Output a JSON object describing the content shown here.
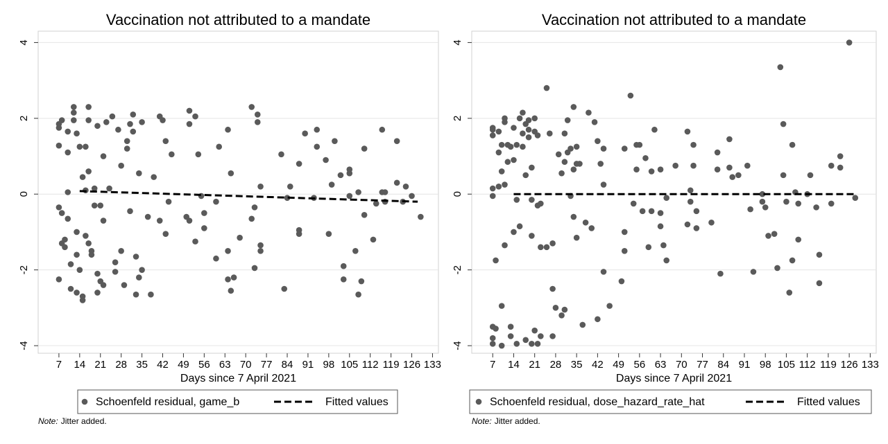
{
  "chart_data": [
    {
      "type": "scatter",
      "title": "Vaccination not attributed to a mandate",
      "x_label": "Days since 7 April 2021",
      "xlim": [
        0,
        135
      ],
      "ylim": [
        -4.2,
        4.3
      ],
      "xticks": [
        7,
        14,
        21,
        28,
        35,
        42,
        49,
        56,
        63,
        70,
        77,
        84,
        91,
        98,
        105,
        112,
        119,
        126,
        133
      ],
      "yticks": [
        -4,
        -2,
        0,
        2,
        4
      ],
      "grid": true,
      "note_label": "Note:",
      "note": "Jitter added.",
      "series": [
        {
          "name": "Schoenfeld residual, game_b",
          "color": "#5a5a5a",
          "kind": "markers",
          "x": [
            7,
            7,
            7,
            8,
            7,
            8,
            7,
            8,
            9,
            9,
            10,
            10,
            10,
            10,
            11,
            11,
            12,
            12,
            12,
            13,
            13,
            13,
            13,
            14,
            14,
            15,
            15,
            15,
            16,
            16,
            16,
            17,
            17,
            17,
            17,
            18,
            18,
            19,
            19,
            20,
            20,
            20,
            21,
            21,
            22,
            22,
            22,
            23,
            24,
            25,
            26,
            26,
            27,
            28,
            28,
            29,
            30,
            30,
            31,
            31,
            32,
            32,
            33,
            33,
            34,
            34,
            35,
            35,
            37,
            38,
            39,
            41,
            41,
            42,
            43,
            43,
            44,
            45,
            50,
            51,
            51,
            51,
            53,
            53,
            54,
            55,
            56,
            56,
            60,
            60,
            61,
            64,
            64,
            64,
            65,
            65,
            66,
            68,
            72,
            72,
            73,
            73,
            74,
            74,
            75,
            75,
            75,
            82,
            83,
            84,
            85,
            88,
            88,
            88,
            90,
            93,
            94,
            94,
            97,
            98,
            99,
            100,
            102,
            103,
            103,
            105,
            105,
            105,
            107,
            108,
            108,
            109,
            110,
            110,
            113,
            114,
            116,
            116,
            117,
            117,
            121,
            121,
            123,
            124,
            126,
            129
          ],
          "values": [
            1.28,
            1.75,
            1.85,
            1.95,
            -0.35,
            -1.3,
            -2.25,
            -0.5,
            -1.2,
            -1.4,
            1.65,
            1.1,
            0.05,
            -0.65,
            -1.85,
            -2.5,
            2.3,
            2.15,
            1.95,
            1.6,
            -1.0,
            -1.6,
            -2.6,
            1.25,
            -2.0,
            -2.7,
            -2.8,
            0.45,
            1.25,
            0.1,
            -1.1,
            2.3,
            1.95,
            0.6,
            -1.3,
            -1.5,
            -1.6,
            -0.3,
            0.15,
            1.8,
            -2.1,
            -2.6,
            -0.3,
            -2.3,
            -2.4,
            1.0,
            -0.7,
            1.9,
            0.15,
            2.05,
            -1.8,
            -2.05,
            1.7,
            0.75,
            -1.5,
            -2.4,
            1.4,
            1.2,
            1.85,
            -0.45,
            2.1,
            1.65,
            -2.65,
            -1.65,
            -2.2,
            0.55,
            1.9,
            -2.0,
            -0.6,
            -2.65,
            0.45,
            -0.7,
            2.05,
            1.95,
            -1.05,
            1.4,
            -0.2,
            1.05,
            -0.6,
            2.2,
            1.85,
            -0.7,
            2.05,
            -1.25,
            1.05,
            -0.05,
            -0.5,
            -0.9,
            -1.7,
            -0.2,
            1.25,
            -2.25,
            -1.5,
            1.7,
            0.55,
            -2.55,
            -2.2,
            -1.15,
            2.3,
            -0.65,
            -0.35,
            -1.95,
            2.1,
            1.9,
            -1.35,
            -1.5,
            0.2,
            1.05,
            -2.5,
            -0.1,
            0.2,
            -0.95,
            -1.05,
            0.8,
            1.6,
            -0.1,
            1.7,
            1.25,
            0.9,
            -1.05,
            0.25,
            1.4,
            0.5,
            -1.9,
            -2.25,
            0.65,
            0.55,
            -0.05,
            -1.5,
            0.05,
            -2.65,
            -2.3,
            1.2,
            -0.55,
            -1.2,
            -0.25,
            1.7,
            0.05,
            -0.2,
            0.05,
            1.4,
            0.3,
            -0.2,
            0.2,
            -0.05,
            -0.6
          ]
        },
        {
          "name": "Fitted values",
          "color": "#000000",
          "kind": "dashed-line",
          "x": [
            14,
            128
          ],
          "values": [
            0.08,
            -0.2
          ]
        }
      ]
    },
    {
      "type": "scatter",
      "title": "Vaccination not attributed to a mandate",
      "x_label": "Days since 7 April 2021",
      "xlim": [
        0,
        135
      ],
      "ylim": [
        -4.2,
        4.3
      ],
      "xticks": [
        7,
        14,
        21,
        28,
        35,
        42,
        49,
        56,
        63,
        70,
        77,
        84,
        91,
        98,
        105,
        112,
        119,
        126,
        133
      ],
      "yticks": [
        -4,
        -2,
        0,
        2,
        4
      ],
      "grid": true,
      "note_label": "Note:",
      "note": "Jitter added.",
      "series": [
        {
          "name": "Schoenfeld residual, dose_hazard_rate_hat",
          "color": "#5a5a5a",
          "kind": "markers",
          "x": [
            7,
            7,
            7,
            7,
            7,
            8,
            7,
            7,
            7,
            8,
            9,
            9,
            9,
            10,
            10,
            10,
            10,
            11,
            11,
            11,
            11,
            12,
            12,
            13,
            13,
            13,
            14,
            14,
            14,
            15,
            15,
            15,
            16,
            16,
            17,
            17,
            17,
            18,
            18,
            18,
            19,
            19,
            19,
            20,
            20,
            20,
            20,
            21,
            21,
            21,
            22,
            22,
            22,
            23,
            23,
            23,
            25,
            25,
            26,
            27,
            27,
            27,
            28,
            29,
            30,
            30,
            31,
            31,
            31,
            32,
            32,
            33,
            33,
            34,
            34,
            34,
            35,
            35,
            35,
            36,
            37,
            38,
            39,
            40,
            41,
            42,
            42,
            43,
            44,
            44,
            44,
            46,
            50,
            51,
            51,
            51,
            53,
            54,
            55,
            55,
            56,
            57,
            58,
            59,
            60,
            60,
            61,
            63,
            63,
            63,
            64,
            65,
            65,
            68,
            72,
            72,
            73,
            73,
            74,
            74,
            75,
            75,
            80,
            82,
            82,
            83,
            86,
            86,
            87,
            89,
            92,
            93,
            94,
            97,
            97,
            98,
            99,
            101,
            102,
            103,
            104,
            104,
            105,
            106,
            107,
            107,
            108,
            109,
            109,
            112,
            113,
            115,
            116,
            116,
            120,
            120,
            123,
            123,
            126,
            128
          ],
          "values": [
            1.55,
            1.7,
            1.75,
            0.15,
            -0.05,
            -1.75,
            -3.5,
            -3.8,
            -3.95,
            -3.55,
            1.65,
            1.1,
            0.2,
            -2.95,
            -4.0,
            1.3,
            0.6,
            2.0,
            1.9,
            -1.35,
            0.25,
            1.3,
            0.85,
            1.25,
            -3.5,
            -3.75,
            1.75,
            -1.0,
            0.9,
            -0.15,
            -3.95,
            1.3,
            -0.85,
            2.0,
            1.6,
            1.25,
            2.15,
            1.85,
            0.5,
            -3.85,
            1.5,
            1.95,
            1.7,
            0.7,
            -3.95,
            -1.1,
            -0.15,
            1.65,
            2.0,
            -3.6,
            1.55,
            -3.95,
            -0.3,
            -1.4,
            -3.75,
            -0.25,
            2.8,
            -1.4,
            1.6,
            -1.3,
            -3.75,
            -2.5,
            -3.0,
            1.05,
            0.55,
            -3.2,
            1.6,
            0.85,
            -3.05,
            1.95,
            1.1,
            -0.05,
            1.2,
            2.3,
            0.65,
            -0.6,
            0.8,
            1.25,
            -1.15,
            0.8,
            -3.45,
            -0.75,
            2.15,
            -0.9,
            1.9,
            -3.3,
            1.4,
            0.8,
            1.2,
            0.25,
            -2.05,
            -2.95,
            -2.3,
            1.2,
            -1.5,
            -1.0,
            2.6,
            -0.25,
            0.65,
            1.3,
            1.3,
            -0.45,
            0.95,
            -1.4,
            0.6,
            -0.45,
            1.7,
            -0.85,
            -0.5,
            0.65,
            -1.35,
            -0.1,
            -1.75,
            0.75,
            1.65,
            -0.8,
            0.1,
            -0.2,
            1.3,
            0.75,
            -0.9,
            -0.45,
            -0.75,
            1.1,
            0.65,
            -2.1,
            1.45,
            0.7,
            0.45,
            0.5,
            0.75,
            -0.4,
            -2.05,
            0.0,
            -0.2,
            -0.35,
            -1.1,
            -1.05,
            -1.95,
            3.35,
            0.5,
            1.85,
            -0.2,
            -2.6,
            1.3,
            -1.75,
            0.05,
            -0.25,
            -1.2,
            0.0,
            0.5,
            -0.35,
            -1.6,
            -2.35,
            0.75,
            -0.25,
            0.7,
            1.0,
            4.0,
            -0.1
          ]
        },
        {
          "name": "Fitted values",
          "color": "#000000",
          "kind": "dashed-line",
          "x": [
            14,
            128
          ],
          "values": [
            0.0,
            0.0
          ]
        }
      ]
    }
  ]
}
